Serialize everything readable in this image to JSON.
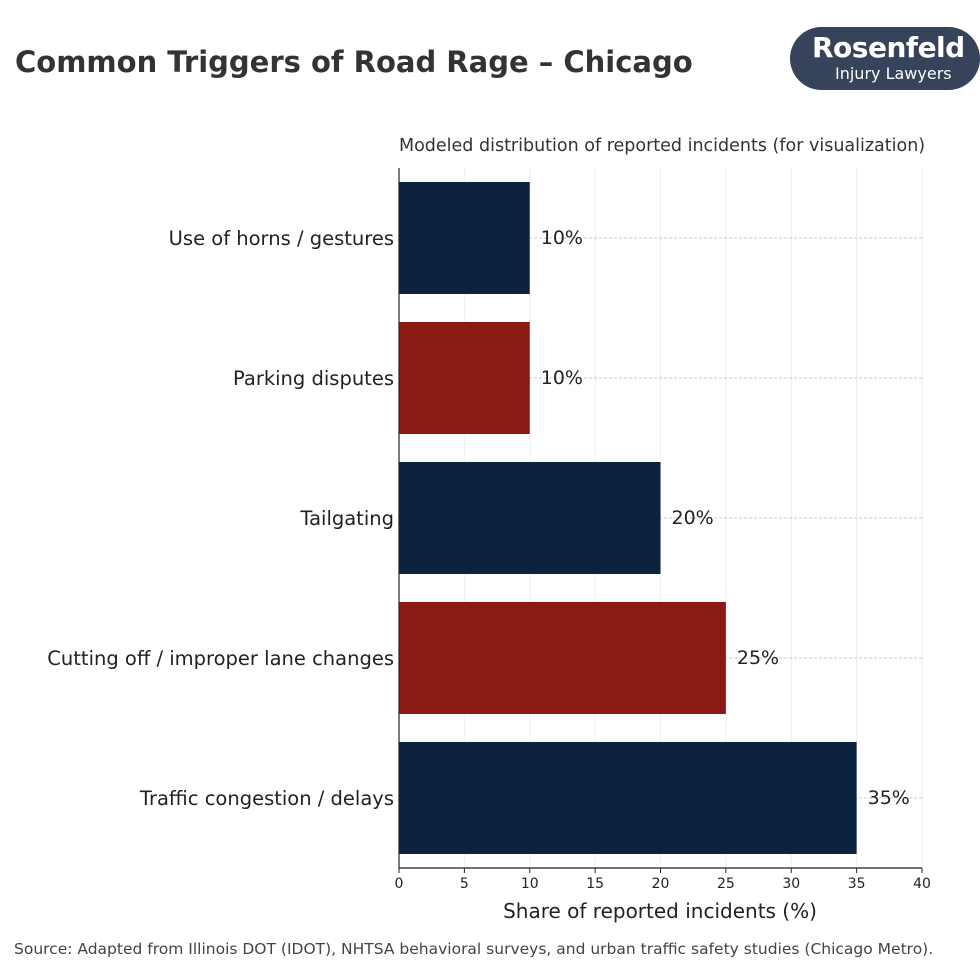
{
  "title": "Common Triggers of Road Rage – Chicago",
  "logo": {
    "line1": "Rosenfeld",
    "line2": "Injury Lawyers"
  },
  "source": "Source: Adapted from Illinois DOT (IDOT), NHTSA behavioral surveys, and urban traffic safety studies (Chicago Metro).",
  "chart_data": {
    "type": "bar",
    "orientation": "horizontal",
    "title": "Modeled distribution of reported incidents (for visualization)",
    "xlabel": "Share of reported incidents (%)",
    "ylabel": "",
    "categories": [
      "Use of horns / gestures",
      "Parking disputes",
      "Tailgating",
      "Cutting off / improper lane changes",
      "Traffic congestion / delays"
    ],
    "values": [
      10,
      10,
      20,
      25,
      35
    ],
    "data_labels": [
      "10%",
      "10%",
      "20%",
      "25%",
      "35%"
    ],
    "bar_colors": [
      "#0c2340",
      "#8b1a14",
      "#0c2340",
      "#8b1a14",
      "#0c2340"
    ],
    "xlim": [
      0,
      40
    ],
    "xticks": [
      0,
      5,
      10,
      15,
      20,
      25,
      30,
      35,
      40
    ],
    "grid": "dashed horizontal at bar centers, faint vertical"
  }
}
